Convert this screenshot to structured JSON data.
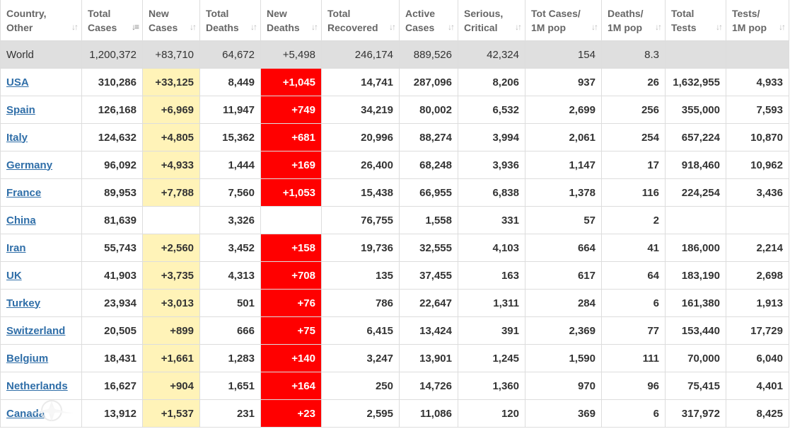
{
  "table": {
    "headers": [
      {
        "label": "Country,\nOther",
        "active_sort": false
      },
      {
        "label": "Total\nCases",
        "active_sort": true
      },
      {
        "label": "New\nCases",
        "active_sort": false
      },
      {
        "label": "Total\nDeaths",
        "active_sort": false
      },
      {
        "label": "New\nDeaths",
        "active_sort": false
      },
      {
        "label": "Total\nRecovered",
        "active_sort": false
      },
      {
        "label": "Active\nCases",
        "active_sort": false
      },
      {
        "label": "Serious,\nCritical",
        "active_sort": false
      },
      {
        "label": "Tot Cases/\n1M pop",
        "active_sort": false
      },
      {
        "label": "Deaths/\n1M pop",
        "active_sort": false
      },
      {
        "label": "Total\nTests",
        "active_sort": false
      },
      {
        "label": "Tests/\n1M pop",
        "active_sort": false
      }
    ],
    "world_row": {
      "country": "World",
      "total_cases": "1,200,372",
      "new_cases": "+83,710",
      "total_deaths": "64,672",
      "new_deaths": "+5,498",
      "total_recovered": "246,174",
      "active_cases": "889,526",
      "serious_critical": "42,324",
      "tot_cases_per_1m": "154",
      "deaths_per_1m": "8.3",
      "total_tests": "",
      "tests_per_1m": ""
    },
    "rows": [
      {
        "country": "USA",
        "total_cases": "310,286",
        "new_cases": "+33,125",
        "total_deaths": "8,449",
        "new_deaths": "+1,045",
        "total_recovered": "14,741",
        "active_cases": "287,096",
        "serious_critical": "8,206",
        "tot_cases_per_1m": "937",
        "deaths_per_1m": "26",
        "total_tests": "1,632,955",
        "tests_per_1m": "4,933"
      },
      {
        "country": "Spain",
        "total_cases": "126,168",
        "new_cases": "+6,969",
        "total_deaths": "11,947",
        "new_deaths": "+749",
        "total_recovered": "34,219",
        "active_cases": "80,002",
        "serious_critical": "6,532",
        "tot_cases_per_1m": "2,699",
        "deaths_per_1m": "256",
        "total_tests": "355,000",
        "tests_per_1m": "7,593"
      },
      {
        "country": "Italy",
        "total_cases": "124,632",
        "new_cases": "+4,805",
        "total_deaths": "15,362",
        "new_deaths": "+681",
        "total_recovered": "20,996",
        "active_cases": "88,274",
        "serious_critical": "3,994",
        "tot_cases_per_1m": "2,061",
        "deaths_per_1m": "254",
        "total_tests": "657,224",
        "tests_per_1m": "10,870"
      },
      {
        "country": "Germany",
        "total_cases": "96,092",
        "new_cases": "+4,933",
        "total_deaths": "1,444",
        "new_deaths": "+169",
        "total_recovered": "26,400",
        "active_cases": "68,248",
        "serious_critical": "3,936",
        "tot_cases_per_1m": "1,147",
        "deaths_per_1m": "17",
        "total_tests": "918,460",
        "tests_per_1m": "10,962"
      },
      {
        "country": "France",
        "total_cases": "89,953",
        "new_cases": "+7,788",
        "total_deaths": "7,560",
        "new_deaths": "+1,053",
        "total_recovered": "15,438",
        "active_cases": "66,955",
        "serious_critical": "6,838",
        "tot_cases_per_1m": "1,378",
        "deaths_per_1m": "116",
        "total_tests": "224,254",
        "tests_per_1m": "3,436"
      },
      {
        "country": "China",
        "total_cases": "81,639",
        "new_cases": "",
        "total_deaths": "3,326",
        "new_deaths": "",
        "total_recovered": "76,755",
        "active_cases": "1,558",
        "serious_critical": "331",
        "tot_cases_per_1m": "57",
        "deaths_per_1m": "2",
        "total_tests": "",
        "tests_per_1m": ""
      },
      {
        "country": "Iran",
        "total_cases": "55,743",
        "new_cases": "+2,560",
        "total_deaths": "3,452",
        "new_deaths": "+158",
        "total_recovered": "19,736",
        "active_cases": "32,555",
        "serious_critical": "4,103",
        "tot_cases_per_1m": "664",
        "deaths_per_1m": "41",
        "total_tests": "186,000",
        "tests_per_1m": "2,214"
      },
      {
        "country": "UK",
        "total_cases": "41,903",
        "new_cases": "+3,735",
        "total_deaths": "4,313",
        "new_deaths": "+708",
        "total_recovered": "135",
        "active_cases": "37,455",
        "serious_critical": "163",
        "tot_cases_per_1m": "617",
        "deaths_per_1m": "64",
        "total_tests": "183,190",
        "tests_per_1m": "2,698"
      },
      {
        "country": "Turkey",
        "total_cases": "23,934",
        "new_cases": "+3,013",
        "total_deaths": "501",
        "new_deaths": "+76",
        "total_recovered": "786",
        "active_cases": "22,647",
        "serious_critical": "1,311",
        "tot_cases_per_1m": "284",
        "deaths_per_1m": "6",
        "total_tests": "161,380",
        "tests_per_1m": "1,913"
      },
      {
        "country": "Switzerland",
        "total_cases": "20,505",
        "new_cases": "+899",
        "total_deaths": "666",
        "new_deaths": "+75",
        "total_recovered": "6,415",
        "active_cases": "13,424",
        "serious_critical": "391",
        "tot_cases_per_1m": "2,369",
        "deaths_per_1m": "77",
        "total_tests": "153,440",
        "tests_per_1m": "17,729"
      },
      {
        "country": "Belgium",
        "total_cases": "18,431",
        "new_cases": "+1,661",
        "total_deaths": "1,283",
        "new_deaths": "+140",
        "total_recovered": "3,247",
        "active_cases": "13,901",
        "serious_critical": "1,245",
        "tot_cases_per_1m": "1,590",
        "deaths_per_1m": "111",
        "total_tests": "70,000",
        "tests_per_1m": "6,040"
      },
      {
        "country": "Netherlands",
        "total_cases": "16,627",
        "new_cases": "+904",
        "total_deaths": "1,651",
        "new_deaths": "+164",
        "total_recovered": "250",
        "active_cases": "14,726",
        "serious_critical": "1,360",
        "tot_cases_per_1m": "970",
        "deaths_per_1m": "96",
        "total_tests": "75,415",
        "tests_per_1m": "4,401"
      },
      {
        "country": "Canada",
        "total_cases": "13,912",
        "new_cases": "+1,537",
        "total_deaths": "231",
        "new_deaths": "+23",
        "total_recovered": "2,595",
        "active_cases": "11,086",
        "serious_critical": "120",
        "tot_cases_per_1m": "369",
        "deaths_per_1m": "6",
        "total_tests": "317,972",
        "tests_per_1m": "8,425"
      }
    ]
  },
  "colors": {
    "new_cases_bg": "#fff3b8",
    "new_deaths_bg": "#ff0000",
    "world_row_bg": "#dfdfdf",
    "country_link": "#2f6ea8"
  },
  "icons": {
    "sort": "sort-arrows-icon",
    "watermark": "forum-logo-icon"
  }
}
